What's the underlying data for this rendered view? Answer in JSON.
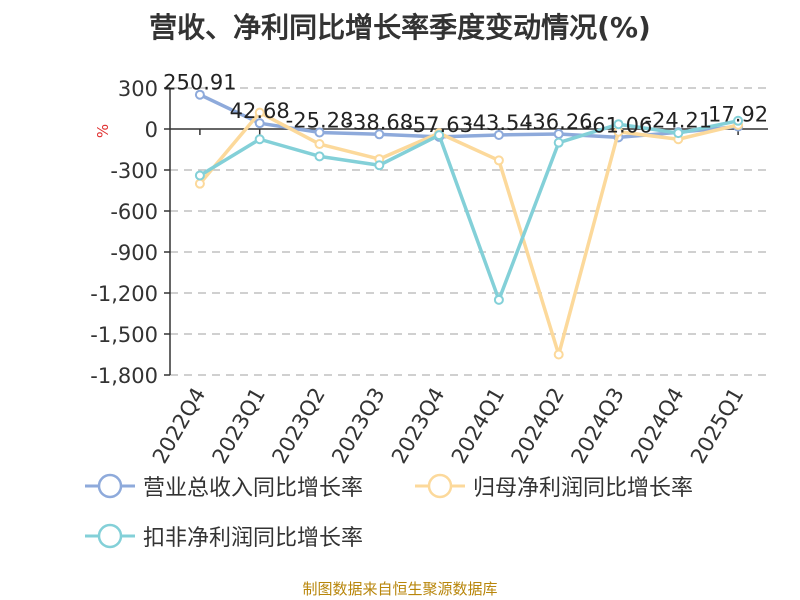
{
  "colors": {
    "revenue": "#8eaadb",
    "net_profit": "#fcd99b",
    "deducted_net_profit": "#83d0d8",
    "grid": "#c0c0c0",
    "axis": "#333333",
    "unit": "#e03030",
    "source": "#b8860b"
  },
  "source": "制图数据来自恒生聚源数据库",
  "chart_data": {
    "type": "line",
    "title": "营收、净利同比增长率季度变动情况(%)",
    "ylabel": "%",
    "categories": [
      "2022Q4",
      "2023Q1",
      "2023Q2",
      "2023Q3",
      "2023Q4",
      "2024Q1",
      "2024Q2",
      "2024Q3",
      "2024Q4",
      "2025Q1"
    ],
    "ylim": [
      -1800,
      300
    ],
    "yticks": [
      300,
      0,
      -300,
      -600,
      -900,
      -1200,
      -1500,
      -1800
    ],
    "ytick_labels": [
      "300",
      "0",
      "-300",
      "-600",
      "-900",
      "-1,200",
      "-1,500",
      "-1,800"
    ],
    "grid": true,
    "legend_position": "bottom",
    "series": [
      {
        "name": "营业总收入同比增长率",
        "color_key": "revenue",
        "values": [
          250.91,
          42.68,
          -25.28,
          -38.68,
          -57.63,
          -43.54,
          -36.26,
          -61.06,
          -24.21,
          17.92
        ],
        "labels": [
          "250.91",
          "42.68",
          "-25.28",
          "-38.68",
          "-57.63",
          "-43.54",
          "-36.26",
          "-61.06",
          "-24.21",
          "17.92"
        ]
      },
      {
        "name": "归母净利润同比增长率",
        "color_key": "net_profit",
        "values": [
          -400,
          120,
          -110,
          -220,
          -30,
          -230,
          -1650,
          -20,
          -75,
          30
        ]
      },
      {
        "name": "扣非净利润同比增长率",
        "color_key": "deducted_net_profit",
        "values": [
          -340,
          -75,
          -200,
          -265,
          -45,
          -1250,
          -100,
          35,
          -30,
          60
        ]
      }
    ]
  }
}
